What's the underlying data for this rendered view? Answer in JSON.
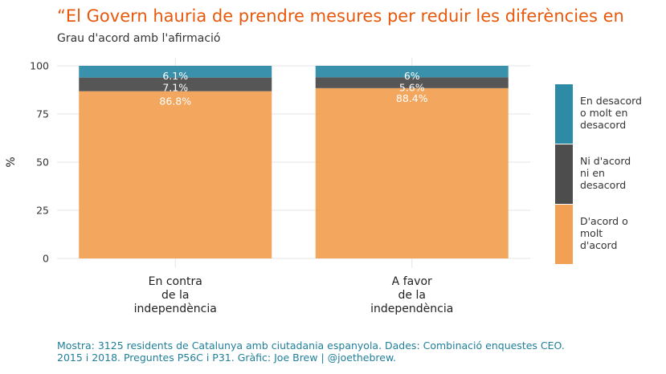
{
  "title": "“El Govern hauria de prendre mesures per reduir les diferències en",
  "subtitle": "Grau d'acord amb l'afirmació",
  "caption": {
    "line1": "Mostra: 3125 residents de Catalunya amb ciutadania espanyola. Dades: Combinació enquestes CEO.",
    "line2": "2015 i 2018. Preguntes P56C i P31. Gràfic: Joe Brew | @joethebrew."
  },
  "chart_data": {
    "type": "bar",
    "stacked": true,
    "ylabel": "%",
    "xlabel": "",
    "ylim": [
      0,
      100
    ],
    "yticks": [
      "0",
      "25",
      "50",
      "75",
      "100"
    ],
    "categories": [
      [
        "En contra",
        "de la",
        "independència"
      ],
      [
        "A favor",
        "de la",
        "independència"
      ]
    ],
    "series": [
      {
        "name": "D'acord o molt d'acord",
        "legend_lines": [
          "D'acord o",
          "molt",
          "d'acord"
        ],
        "color": "#f2a154",
        "values": [
          86.8,
          88.4
        ],
        "labels": [
          "86.8%",
          "88.4%"
        ]
      },
      {
        "name": "Ni d'acord ni en desacord",
        "legend_lines": [
          "Ni d'acord",
          "ni en",
          "desacord"
        ],
        "color": "#4d4d4d",
        "values": [
          7.1,
          5.6
        ],
        "labels": [
          "7.1%",
          "5.6%"
        ]
      },
      {
        "name": "En desacord o molt en desacord",
        "legend_lines": [
          "En desacord",
          "o molt en",
          "desacord"
        ],
        "color": "#2e8ba6",
        "values": [
          6.1,
          6.0
        ],
        "labels": [
          "6.1%",
          "6%"
        ]
      }
    ],
    "grid": true,
    "legend_position": "right"
  }
}
